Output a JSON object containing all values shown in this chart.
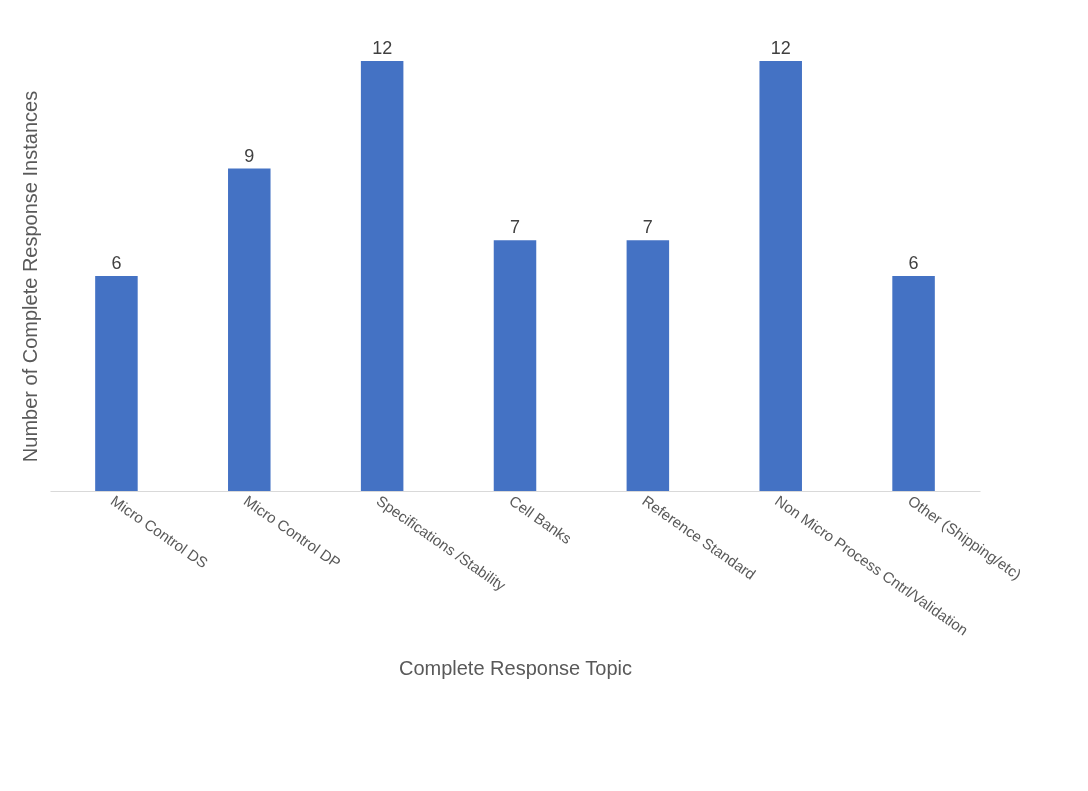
{
  "chart_data": {
    "type": "bar",
    "xlabel": "Complete Response Topic",
    "ylabel": "Number of Complete Response Instances",
    "categories": [
      "Micro Control DS",
      "Micro Control DP",
      "Specifications /Stability",
      "Cell Banks",
      "Reference Standard",
      "Non Micro Process Cntrl/Validation",
      "Other (Shipping/etc)"
    ],
    "values": [
      6,
      9,
      12,
      7,
      7,
      12,
      6
    ],
    "color": "#4472c4",
    "data_labels": true,
    "grid": false
  }
}
